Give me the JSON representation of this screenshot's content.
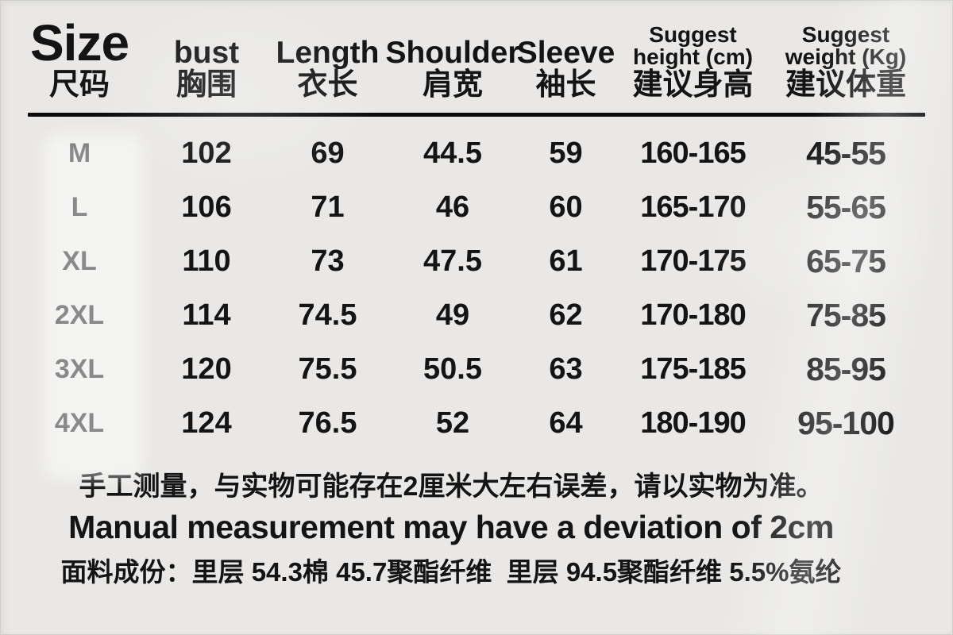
{
  "page": {
    "background_color": "#e9e8e6",
    "text_color": "#141414",
    "rule_color": "#0a0a0a"
  },
  "table": {
    "columns": [
      {
        "id": "size",
        "en": "Size",
        "zh": "尺码"
      },
      {
        "id": "bust",
        "en": "bust",
        "zh": "胸围"
      },
      {
        "id": "length",
        "en": "Length",
        "zh": "衣长"
      },
      {
        "id": "shoulder",
        "en": "Shoulder",
        "zh": "肩宽"
      },
      {
        "id": "sleeve",
        "en": "Sleeve",
        "zh": "袖长"
      },
      {
        "id": "height",
        "en": "Suggest height (cm)",
        "en_line1": "Suggest",
        "en_line2": "height (cm)",
        "zh": "建议身高"
      },
      {
        "id": "weight",
        "en": "Suggest weight (Kg)",
        "en_line1": "Suggest",
        "en_line2": "weight (Kg)",
        "zh": "建议体重"
      }
    ],
    "rows": [
      {
        "size": "M",
        "bust": "102",
        "length": "69",
        "shoulder": "44.5",
        "sleeve": "59",
        "height": "160-165",
        "weight": "45-55"
      },
      {
        "size": "L",
        "bust": "106",
        "length": "71",
        "shoulder": "46",
        "sleeve": "60",
        "height": "165-170",
        "weight": "55-65"
      },
      {
        "size": "XL",
        "bust": "110",
        "length": "73",
        "shoulder": "47.5",
        "sleeve": "61",
        "height": "170-175",
        "weight": "65-75"
      },
      {
        "size": "2XL",
        "bust": "114",
        "length": "74.5",
        "shoulder": "49",
        "sleeve": "62",
        "height": "170-180",
        "weight": "75-85"
      },
      {
        "size": "3XL",
        "bust": "120",
        "length": "75.5",
        "shoulder": "50.5",
        "sleeve": "63",
        "height": "175-185",
        "weight": "85-95"
      },
      {
        "size": "4XL",
        "bust": "124",
        "length": "76.5",
        "shoulder": "52",
        "sleeve": "64",
        "height": "180-190",
        "weight": "95-100"
      }
    ]
  },
  "notes": {
    "zh_deviation": "手工测量，与实物可能存在2厘米大左右误差，请以实物为准。",
    "en_deviation": "Manual measurement may have a deviation of 2cm",
    "fabric": "面料成份：里层 54.3棉 45.7聚酯纤维  里层 94.5聚酯纤维 5.5%氨纶"
  }
}
